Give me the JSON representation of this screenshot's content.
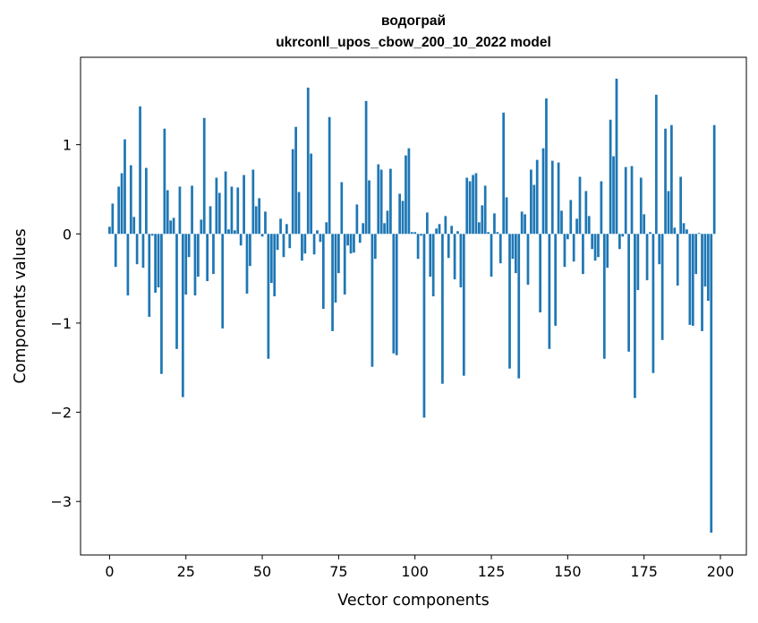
{
  "chart_data": {
    "type": "bar",
    "title": "водограй",
    "subtitle": "ukrconll_upos_cbow_200_10_2022 model",
    "xlabel": "Vector components",
    "ylabel": "Components values",
    "xlim": [
      -9.5,
      208.5
    ],
    "ylim": [
      -3.6,
      1.98
    ],
    "xticks": [
      0,
      25,
      50,
      75,
      100,
      125,
      150,
      175,
      200
    ],
    "xtick_labels": [
      "0",
      "25",
      "50",
      "75",
      "100",
      "125",
      "150",
      "175",
      "200"
    ],
    "yticks": [
      1,
      0,
      -1,
      -2,
      -3
    ],
    "ytick_labels": [
      "1",
      "0",
      "−1",
      "−2",
      "−3"
    ],
    "grid": false,
    "legend": "none",
    "bar_color": "#1f77b4",
    "values": [
      0.08,
      0.34,
      -0.37,
      0.53,
      0.68,
      1.06,
      -0.69,
      0.77,
      0.19,
      -0.34,
      1.43,
      -0.38,
      0.74,
      -0.93,
      -0.02,
      -0.66,
      -0.6,
      -1.57,
      1.18,
      0.49,
      0.15,
      0.18,
      -1.29,
      0.53,
      -1.83,
      -0.68,
      -0.26,
      0.54,
      -0.69,
      -0.48,
      0.16,
      1.3,
      -0.53,
      0.31,
      -0.45,
      0.63,
      0.46,
      -1.06,
      0.7,
      0.05,
      0.53,
      0.04,
      0.52,
      -0.13,
      0.66,
      -0.67,
      -0.36,
      0.72,
      0.31,
      0.4,
      -0.03,
      0.25,
      -1.4,
      -0.55,
      -0.7,
      -0.18,
      0.17,
      -0.26,
      0.11,
      -0.16,
      0.95,
      1.2,
      0.47,
      -0.3,
      -0.22,
      1.64,
      0.9,
      -0.23,
      0.04,
      -0.09,
      -0.84,
      0.13,
      1.31,
      -1.09,
      -0.77,
      -0.44,
      0.58,
      -0.68,
      -0.13,
      -0.22,
      -0.21,
      0.33,
      -0.1,
      0.12,
      1.49,
      0.6,
      -1.49,
      -0.28,
      0.78,
      0.72,
      0.12,
      0.26,
      0.73,
      -1.34,
      -1.36,
      0.45,
      0.37,
      0.88,
      0.96,
      0.02,
      0.02,
      -0.28,
      -0.02,
      -2.06,
      0.24,
      -0.48,
      -0.7,
      0.06,
      0.11,
      -1.68,
      0.2,
      -0.27,
      0.09,
      -0.51,
      0.03,
      -0.6,
      -1.59,
      0.63,
      0.59,
      0.66,
      0.68,
      0.13,
      0.32,
      0.54,
      0.02,
      -0.48,
      0.23,
      0.02,
      -0.33,
      1.36,
      0.41,
      -1.51,
      -0.28,
      -0.44,
      -1.62,
      0.25,
      0.22,
      -0.57,
      0.72,
      0.55,
      0.83,
      -0.88,
      0.96,
      1.52,
      -1.29,
      0.82,
      -1.03,
      0.8,
      0.26,
      -0.37,
      -0.06,
      0.38,
      -0.31,
      0.17,
      0.64,
      -0.45,
      0.48,
      0.2,
      -0.17,
      -0.3,
      -0.26,
      0.59,
      -1.4,
      -0.38,
      1.28,
      0.87,
      1.74,
      -0.17,
      -0.03,
      0.75,
      -1.32,
      0.76,
      -1.84,
      -0.63,
      0.63,
      0.22,
      -0.52,
      0.02,
      -1.56,
      1.56,
      -0.34,
      -1.19,
      1.18,
      0.48,
      1.22,
      0.07,
      -0.58,
      0.64,
      0.12,
      0.05,
      -1.02,
      -1.03,
      -0.45,
      0.01,
      -1.09,
      -0.59,
      -0.75,
      -3.35,
      1.22
    ]
  }
}
